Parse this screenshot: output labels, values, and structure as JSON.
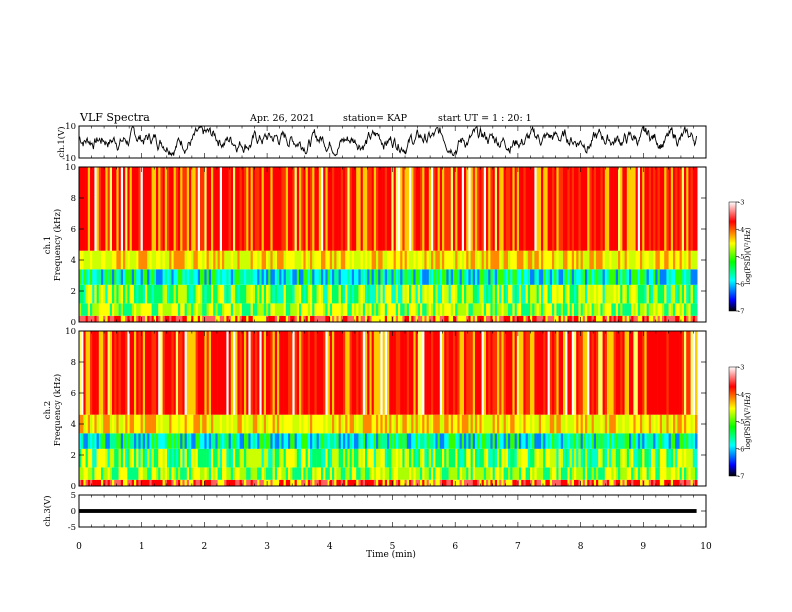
{
  "header": {
    "title": "VLF Spectra",
    "date": "Apr. 26, 2021",
    "station": "station= KAP",
    "start": "start  UT =   1 : 20: 1"
  },
  "colors": {
    "spec_low": "#ff0000",
    "spec_mid_high": "#ffff00",
    "spec_mid": "#00ff00",
    "spec_mid_low": "#00ffff",
    "spec_lowest": "#0000ff",
    "floor": "#000000"
  },
  "chart_data": [
    {
      "type": "line",
      "panel": "ch1-waveform",
      "ylabel": "ch.1(V)",
      "ylim": [
        -10,
        10
      ],
      "yticks": [
        "10",
        "-10"
      ],
      "xlim": [
        0,
        10
      ],
      "description_values": "noisy waveform fluctuating roughly between -8 and 9 V over 0-9.8 min"
    },
    {
      "type": "heatmap",
      "panel": "ch1-spectrogram",
      "ylabel": "ch.1\nFrequency  (kHz)",
      "ylim": [
        0,
        10
      ],
      "yticks": [
        "0",
        "2",
        "4",
        "6",
        "8",
        "10"
      ],
      "xlim": [
        0,
        10
      ],
      "colorbar": {
        "label": "log(PSD)(V²/Hz)",
        "ticks": [
          "-3",
          "-4",
          "-5",
          "-6",
          "-7"
        ],
        "range": [
          -7,
          -3
        ]
      }
    },
    {
      "type": "heatmap",
      "panel": "ch2-spectrogram",
      "ylabel": "ch.2\nFrequency  (kHz)",
      "ylim": [
        0,
        10
      ],
      "yticks": [
        "0",
        "2",
        "4",
        "6",
        "8",
        "10"
      ],
      "xlim": [
        0,
        10
      ],
      "colorbar": {
        "label": "log(PSD)(V²/Hz)",
        "ticks": [
          "-3",
          "-4",
          "-5",
          "-6",
          "-7"
        ],
        "range": [
          -7,
          -3
        ]
      }
    },
    {
      "type": "line",
      "panel": "ch3-waveform",
      "ylabel": "ch.3(V)",
      "ylim": [
        -5,
        5
      ],
      "yticks": [
        "5",
        "0",
        "-5"
      ],
      "xlim": [
        0,
        10
      ],
      "xlabel": "Time  (min)",
      "xticks": [
        "0",
        "1",
        "2",
        "3",
        "4",
        "5",
        "6",
        "7",
        "8",
        "9",
        "10"
      ]
    }
  ]
}
